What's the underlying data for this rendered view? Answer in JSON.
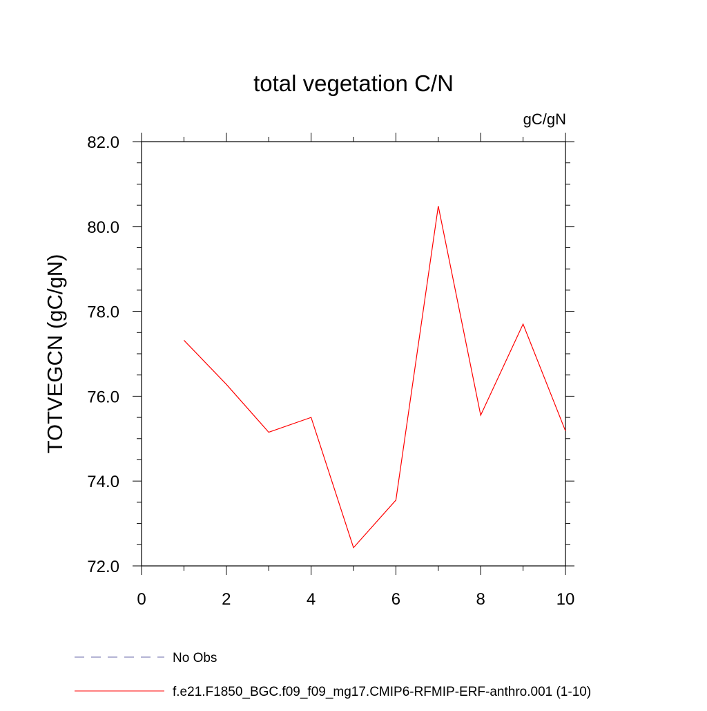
{
  "chart_data": {
    "type": "line",
    "title": "total vegetation C/N",
    "units_label": "gC/gN",
    "ylabel": "TOTVEGCN  (gC/gN)",
    "xlabel": "",
    "xlim": [
      0,
      10
    ],
    "ylim": [
      72,
      82
    ],
    "x_ticks": [
      0,
      2,
      4,
      6,
      8,
      10
    ],
    "x_tick_labels": [
      "0",
      "2",
      "4",
      "6",
      "8",
      "10"
    ],
    "x_minor_step": 1,
    "y_ticks": [
      72,
      74,
      76,
      78,
      80,
      82
    ],
    "y_tick_labels": [
      "72.0",
      "74.0",
      "76.0",
      "78.0",
      "80.0",
      "82.0"
    ],
    "y_minor_step": 0.5,
    "grid": false,
    "legend_position": "bottom",
    "series": [
      {
        "name": "f.e21.F1850_BGC.f09_f09_mg17.CMIP6-RFMIP-ERF-anthro.001 (1-10)",
        "color": "#ff0000",
        "style": "solid",
        "x": [
          1,
          2,
          3,
          4,
          5,
          6,
          7,
          8,
          9,
          10
        ],
        "y": [
          77.32,
          76.28,
          75.15,
          75.5,
          72.43,
          73.55,
          80.48,
          75.55,
          77.7,
          75.18
        ]
      }
    ],
    "legend": [
      {
        "label": "No Obs",
        "color": "#6a6aa8",
        "style": "dashed"
      },
      {
        "label": "f.e21.F1850_BGC.f09_f09_mg17.CMIP6-RFMIP-ERF-anthro.001 (1-10)",
        "color": "#ff0000",
        "style": "solid"
      }
    ]
  }
}
